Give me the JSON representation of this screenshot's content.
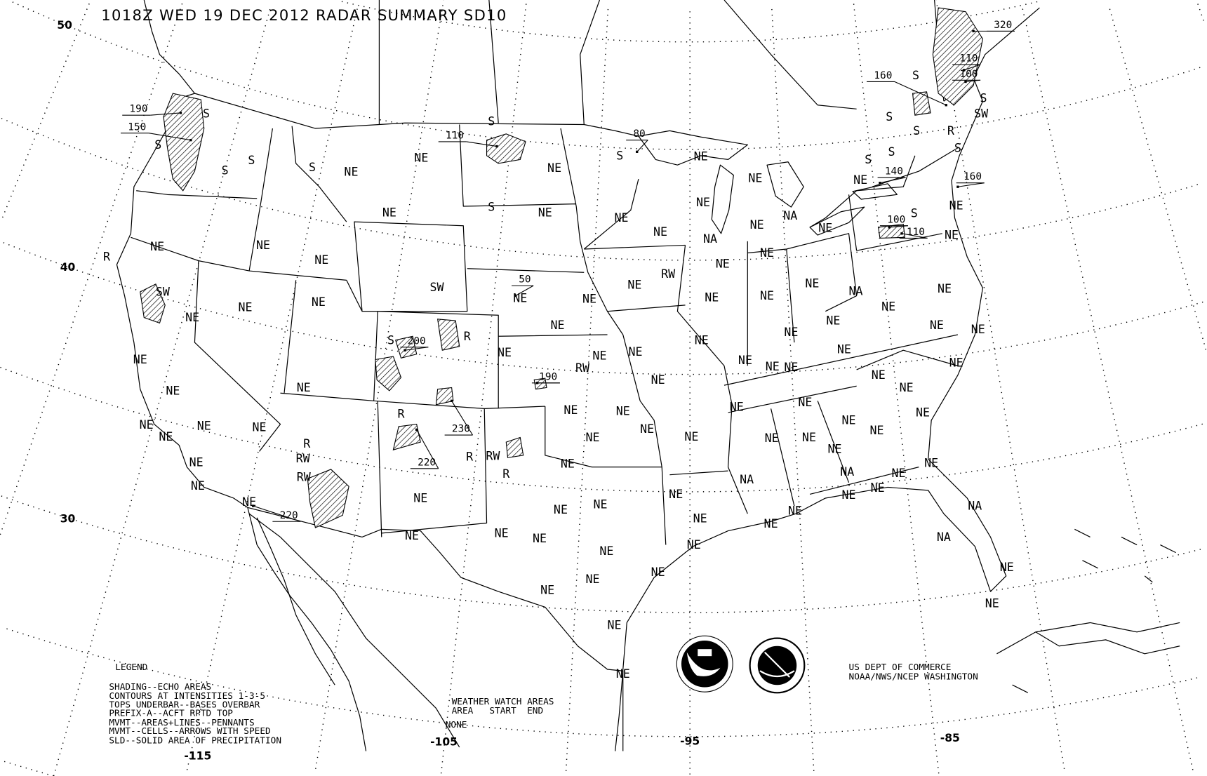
{
  "title": "1018Z WED 19 DEC 2012 RADAR SUMMARY SD10",
  "latitude_labels": [
    "50",
    "40",
    "30"
  ],
  "longitude_labels": [
    "-115",
    "-105",
    "-95",
    "-85"
  ],
  "legend": {
    "heading": "LEGEND",
    "lines": [
      "SHADING--ECHO AREAS",
      "CONTOURS AT INTENSITIES 1-3-5",
      "TOPS UNDERBAR--BASES OVERBAR",
      "PREFIX-A--ACFT RPTD TOP",
      "MVMT--AREAS+LINES--PENNANTS",
      "MVMT--CELLS--ARROWS WITH SPEED",
      "SLD--SOLID AREA OF PRECIPITATION"
    ]
  },
  "watch": {
    "heading": "WEATHER WATCH AREAS",
    "columns": "AREA   START  END",
    "value": "NONE"
  },
  "credit": [
    "US DEPT OF COMMERCE",
    "NOAA/NWS/NCEP WASHINGTON"
  ],
  "logos": {
    "noaa": "NOAA",
    "nws": "NATIONAL WEATHER SERVICE"
  },
  "precip_codes": {
    "ne": "NE",
    "na": "NA",
    "s": "S",
    "sw": "SW",
    "r": "R",
    "rw": "RW"
  },
  "echo_tops": [
    "190",
    "150",
    "110",
    "80",
    "160",
    "320",
    "110",
    "100",
    "140",
    "160",
    "100",
    "110",
    "50",
    "200",
    "190",
    "230",
    "220",
    "220"
  ],
  "colors": {
    "ink": "#000000",
    "background": "#ffffff"
  }
}
